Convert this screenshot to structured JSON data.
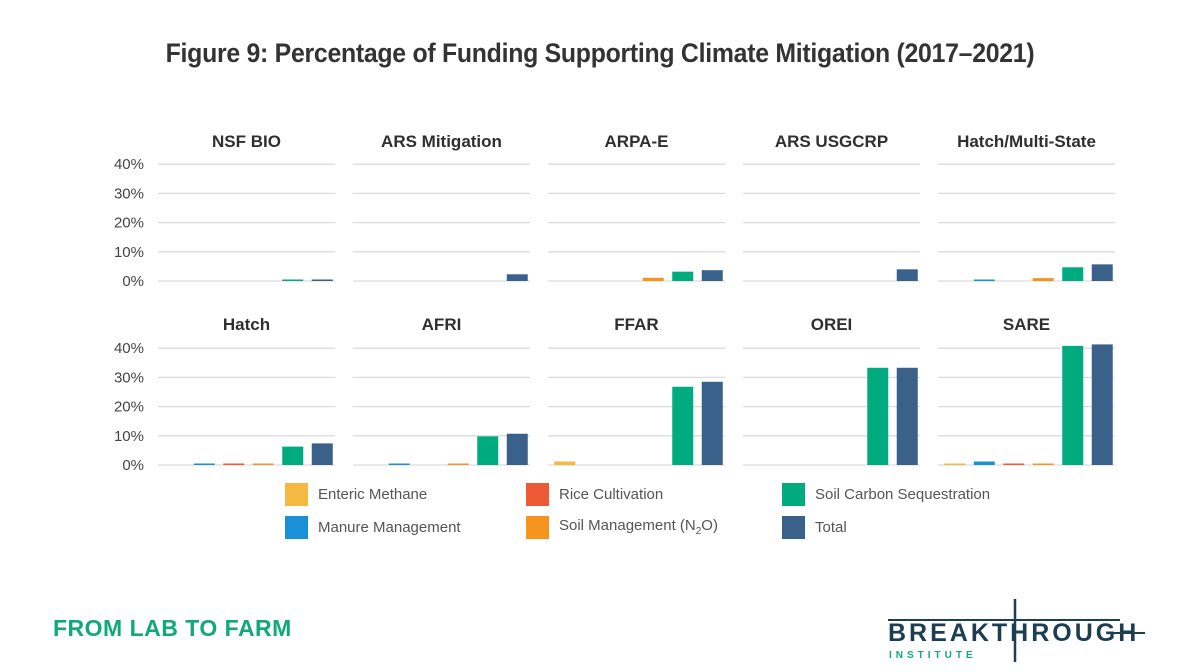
{
  "title": "Figure 9: Percentage of Funding Supporting Climate Mitigation (2017–2021)",
  "chart_data": {
    "type": "bar",
    "title": "Figure 9: Percentage of Funding Supporting Climate Mitigation (2017–2021)",
    "layout": "small-multiples 2x5",
    "ylim": [
      0,
      40
    ],
    "yticks": [
      "0%",
      "10%",
      "20%",
      "30%",
      "40%"
    ],
    "ytick_values": [
      0,
      10,
      20,
      30,
      40
    ],
    "grid": true,
    "legend_position": "bottom",
    "series": [
      {
        "name": "Enteric Methane",
        "color": "#f5b942"
      },
      {
        "name": "Manure Management",
        "color": "#1a90d9"
      },
      {
        "name": "Rice Cultivation",
        "color": "#ef5a36"
      },
      {
        "name": "Soil Management (N2O)",
        "color": "#f7941d"
      },
      {
        "name": "Soil Carbon Sequestration",
        "color": "#00ab80"
      },
      {
        "name": "Total",
        "color": "#3a6189"
      }
    ],
    "panels": [
      {
        "name": "NSF BIO",
        "values": [
          0,
          0,
          0,
          0,
          0.4,
          0.5
        ]
      },
      {
        "name": "ARS Mitigation",
        "values": [
          0,
          0,
          0,
          0,
          0,
          2.3
        ]
      },
      {
        "name": "ARPA-E",
        "values": [
          0,
          0,
          0,
          1.1,
          3.2,
          3.7
        ]
      },
      {
        "name": "ARS USGCRP",
        "values": [
          0,
          0,
          0,
          0,
          0,
          4.0
        ]
      },
      {
        "name": "Hatch/Multi-State",
        "values": [
          0,
          0.3,
          0,
          1.0,
          4.7,
          5.7
        ]
      },
      {
        "name": "Hatch",
        "values": [
          0,
          0.2,
          0.2,
          0.4,
          6.3,
          7.4
        ]
      },
      {
        "name": "AFRI",
        "values": [
          0,
          0.3,
          0,
          0.5,
          9.8,
          10.7
        ]
      },
      {
        "name": "FFAR",
        "values": [
          1.2,
          0,
          0,
          0,
          26.8,
          28.5
        ]
      },
      {
        "name": "OREI",
        "values": [
          0,
          0,
          0,
          0,
          33.3,
          33.3
        ]
      },
      {
        "name": "SARE",
        "values": [
          0.2,
          1.2,
          0.4,
          0.2,
          40.8,
          41.3
        ]
      }
    ]
  },
  "legend": [
    {
      "label": "Enteric Methane",
      "color": "#f5b942"
    },
    {
      "label": "Manure Management",
      "color": "#1a90d9"
    },
    {
      "label": "Rice Cultivation",
      "color": "#ef5a36"
    },
    {
      "label": "Soil Management (N",
      "sub": "2",
      "tail": "O)",
      "color": "#f7941d"
    },
    {
      "label": "Soil Carbon Sequestration",
      "color": "#00ab80"
    },
    {
      "label": "Total",
      "color": "#3a6189"
    }
  ],
  "footer": {
    "tagline": "FROM LAB TO FARM",
    "logo_main": "BREAKTHROUGH",
    "logo_sub": "INSTITUTE",
    "brand_dark": "#1c3d52",
    "brand_green": "#0fa97c"
  }
}
